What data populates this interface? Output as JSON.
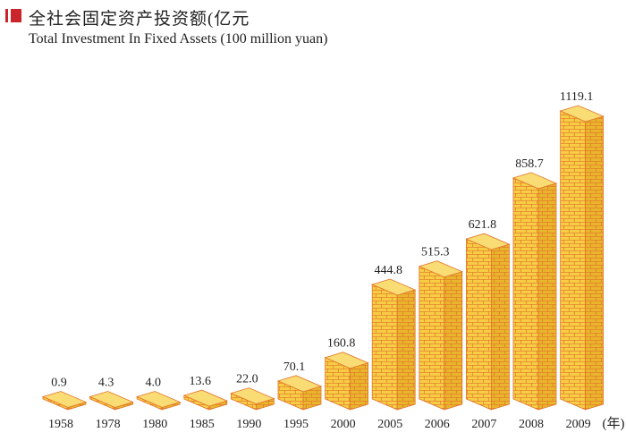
{
  "header": {
    "title_cn": "全社会固定资产投资额(亿元",
    "title_en": "Total Investment In Fixed Assets  (100 million yuan)"
  },
  "colors": {
    "accent": "#c9252b",
    "brick_face": "#f6cd45",
    "brick_side": "#e9b52c",
    "brick_top": "#f9dc74",
    "mortar": "#e2742a"
  },
  "chart_data": {
    "type": "bar",
    "title": "全社会固定资产投资额(亿元",
    "subtitle": "Total Investment In Fixed Assets  (100 million yuan)",
    "xlabel": "",
    "ylabel": "",
    "x_unit": "(年)",
    "categories": [
      "1958",
      "1978",
      "1980",
      "1985",
      "1990",
      "1995",
      "2000",
      "2005",
      "2006",
      "2007",
      "2008",
      "2009"
    ],
    "values": [
      0.9,
      4.3,
      4.0,
      13.6,
      22.0,
      70.1,
      160.8,
      444.8,
      515.3,
      621.8,
      858.7,
      1119.1
    ],
    "value_labels": [
      "0.9",
      "4.3",
      "4.0",
      "13.6",
      "22.0",
      "70.1",
      "160.8",
      "444.8",
      "515.3",
      "621.8",
      "858.7",
      "1119.1"
    ],
    "ylim": [
      0,
      1119.1
    ],
    "grid": false,
    "legend": "none"
  }
}
